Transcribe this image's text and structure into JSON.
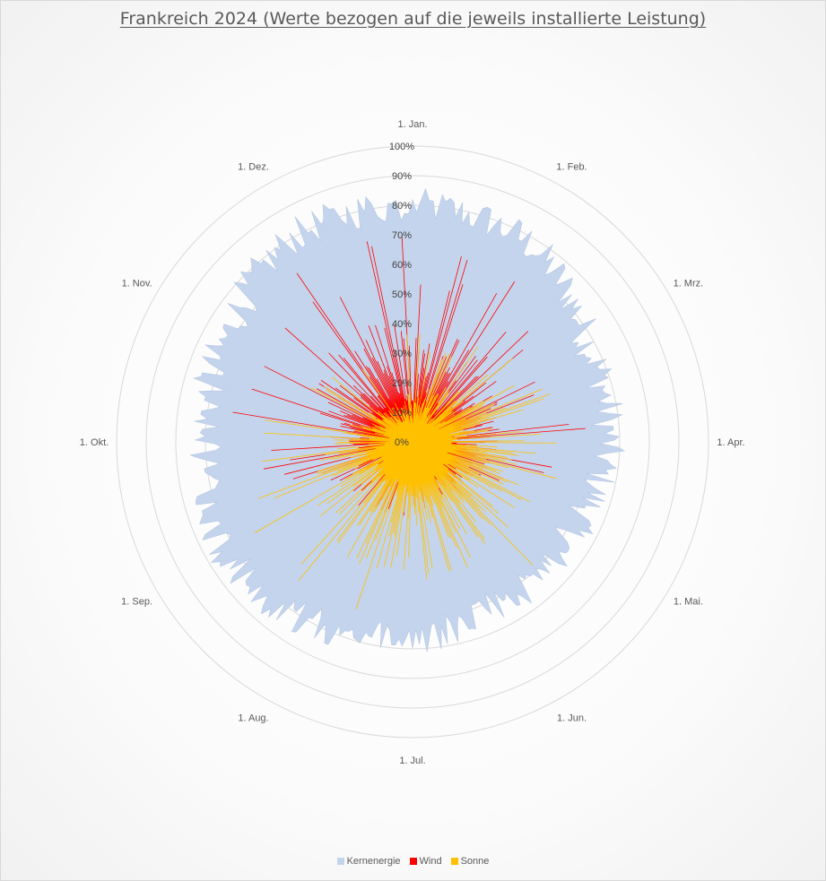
{
  "chart_data": {
    "type": "radar-area",
    "title": "Frankreich 2024 (Werte bezogen auf die jeweils installierte Leistung)",
    "radial_axis": {
      "min": 0,
      "max": 100,
      "unit": "%",
      "tick_labels": [
        "0%",
        "10%",
        "20%",
        "30%",
        "40%",
        "50%",
        "60%",
        "70%",
        "80%",
        "90%",
        "100%"
      ],
      "grid": true
    },
    "month_labels": [
      "1. Jan.",
      "1. Feb.",
      "1. Mrz.",
      "1. Apr.",
      "1. Mai.",
      "1. Jun.",
      "1. Jul.",
      "1. Aug.",
      "1. Sep.",
      "1. Okt.",
      "1. Nov.",
      "1. Dez."
    ],
    "legend_position": "bottom",
    "series": [
      {
        "name": "Kernenergie",
        "color": "#c4d4ec",
        "style": "filled-area",
        "monthly_typical_percent": [
          80,
          78,
          68,
          66,
          62,
          62,
          66,
          70,
          74,
          70,
          72,
          80
        ]
      },
      {
        "name": "Wind",
        "color": "#ff0000",
        "style": "spikes",
        "monthly_typical_percent": [
          28,
          30,
          25,
          22,
          18,
          12,
          10,
          12,
          14,
          20,
          28,
          32
        ],
        "monthly_peak_percent": [
          70,
          66,
          50,
          60,
          28,
          22,
          28,
          30,
          28,
          64,
          64,
          72
        ]
      },
      {
        "name": "Sonne",
        "color": "#ffc000",
        "style": "spikes",
        "monthly_typical_percent": [
          12,
          16,
          22,
          28,
          30,
          33,
          34,
          32,
          28,
          20,
          14,
          10
        ],
        "monthly_peak_percent": [
          38,
          40,
          48,
          52,
          56,
          60,
          66,
          64,
          64,
          60,
          38,
          30
        ]
      }
    ]
  }
}
